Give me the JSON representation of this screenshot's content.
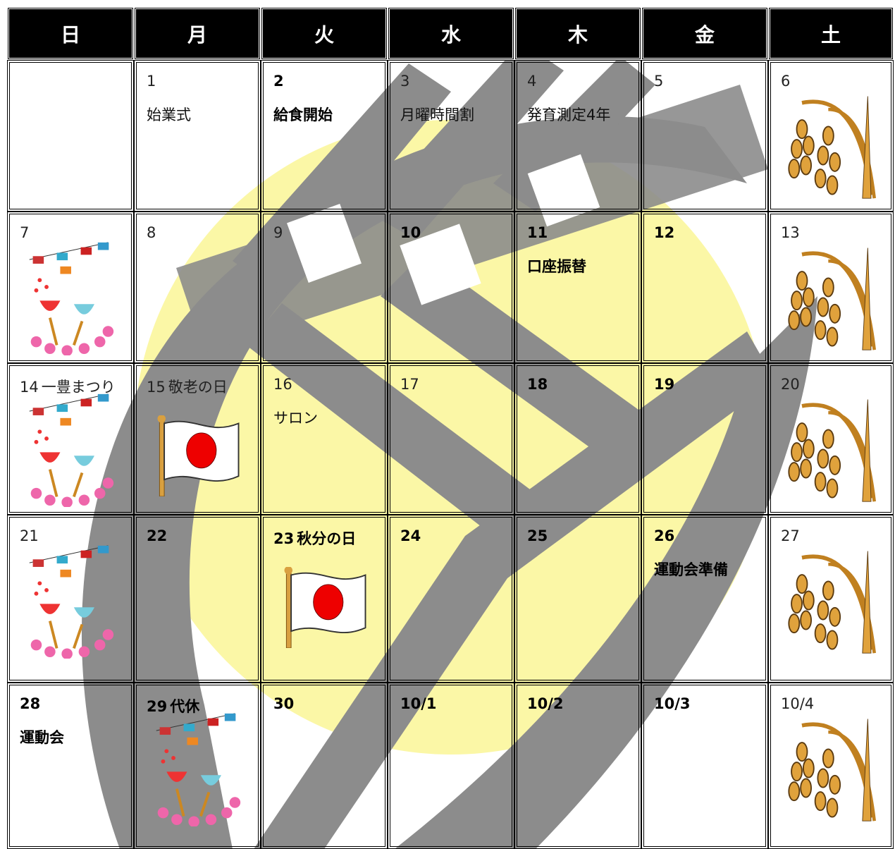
{
  "header": {
    "days": [
      "日",
      "月",
      "火",
      "水",
      "木",
      "金",
      "土"
    ]
  },
  "calendar": {
    "rows": [
      [
        null,
        {
          "date": "1",
          "event": "始業式"
        },
        {
          "date": "2",
          "event": "給食開始"
        },
        {
          "date": "3",
          "event": "月曜時間割"
        },
        {
          "date": "4",
          "event": "発育測定4年"
        },
        {
          "date": "5"
        },
        {
          "date": "6"
        }
      ],
      [
        {
          "date": "7"
        },
        {
          "date": "8"
        },
        {
          "date": "9"
        },
        {
          "date": "10"
        },
        {
          "date": "11",
          "event": "口座振替"
        },
        {
          "date": "12"
        },
        {
          "date": "13"
        }
      ],
      [
        {
          "date": "14",
          "holiday": "一豊まつり"
        },
        {
          "date": "15",
          "holiday": "敬老の日"
        },
        {
          "date": "16",
          "event": "サロン"
        },
        {
          "date": "17"
        },
        {
          "date": "18"
        },
        {
          "date": "19"
        },
        {
          "date": "20"
        }
      ],
      [
        {
          "date": "21"
        },
        {
          "date": "22"
        },
        {
          "date": "23",
          "holiday": "秋分の日"
        },
        {
          "date": "24"
        },
        {
          "date": "25"
        },
        {
          "date": "26",
          "event": "運動会準備"
        },
        {
          "date": "27"
        }
      ],
      [
        {
          "date": "28",
          "event": "運動会"
        },
        {
          "date": "29",
          "holiday": "代休"
        },
        {
          "date": "30"
        },
        {
          "date": "10/1"
        },
        {
          "date": "10/2"
        },
        {
          "date": "10/3"
        },
        {
          "date": "10/4"
        }
      ]
    ]
  }
}
